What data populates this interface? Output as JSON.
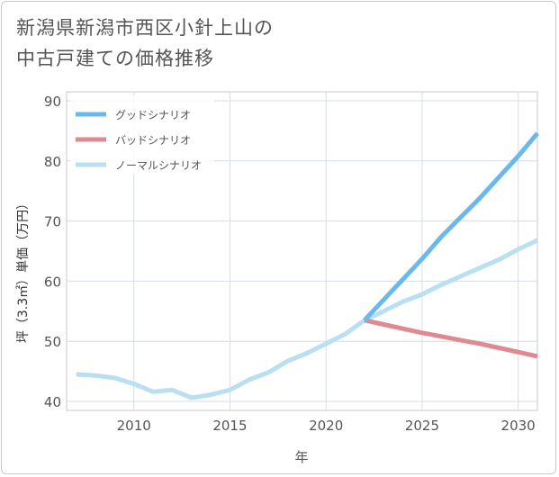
{
  "title_lines": [
    "新潟県新潟市西区小針上山の",
    "中古戸建ての価格推移"
  ],
  "chart_data": {
    "type": "line",
    "xlabel": "年",
    "ylabel": "坪（3.3㎡）単価（万円）",
    "xlim": [
      2006.5,
      2031
    ],
    "ylim": [
      38.5,
      91.5
    ],
    "xticks": [
      2010,
      2015,
      2020,
      2025,
      2030
    ],
    "yticks": [
      40,
      50,
      60,
      70,
      80,
      90
    ],
    "grid": true,
    "legend_position": "top-left",
    "series": [
      {
        "name": "グッドシナリオ",
        "color": "#6bb8ec",
        "x": [
          2022,
          2023,
          2024,
          2025,
          2026,
          2027,
          2028,
          2029,
          2030,
          2031
        ],
        "values": [
          53.5,
          56.9,
          60.3,
          63.7,
          67.4,
          70.6,
          73.8,
          77.3,
          80.8,
          84.6
        ]
      },
      {
        "name": "バッドシナリオ",
        "color": "#e0898f",
        "x": [
          2022,
          2023,
          2024,
          2025,
          2026,
          2027,
          2028,
          2029,
          2030,
          2031
        ],
        "values": [
          53.5,
          52.8,
          52.1,
          51.4,
          50.8,
          50.2,
          49.6,
          48.9,
          48.2,
          47.5
        ]
      },
      {
        "name": "ノーマルシナリオ",
        "color": "#b9dff0",
        "x": [
          2007,
          2008,
          2009,
          2010,
          2011,
          2012,
          2013,
          2014,
          2015,
          2016,
          2017,
          2018,
          2019,
          2020,
          2021,
          2022,
          2023,
          2024,
          2025,
          2026,
          2027,
          2028,
          2029,
          2030,
          2031
        ],
        "values": [
          44.5,
          44.3,
          43.9,
          42.9,
          41.6,
          41.9,
          40.6,
          41.1,
          41.9,
          43.6,
          44.8,
          46.7,
          48.0,
          49.6,
          51.2,
          53.5,
          55.0,
          56.6,
          57.8,
          59.4,
          60.8,
          62.2,
          63.6,
          65.3,
          66.8
        ]
      }
    ]
  }
}
